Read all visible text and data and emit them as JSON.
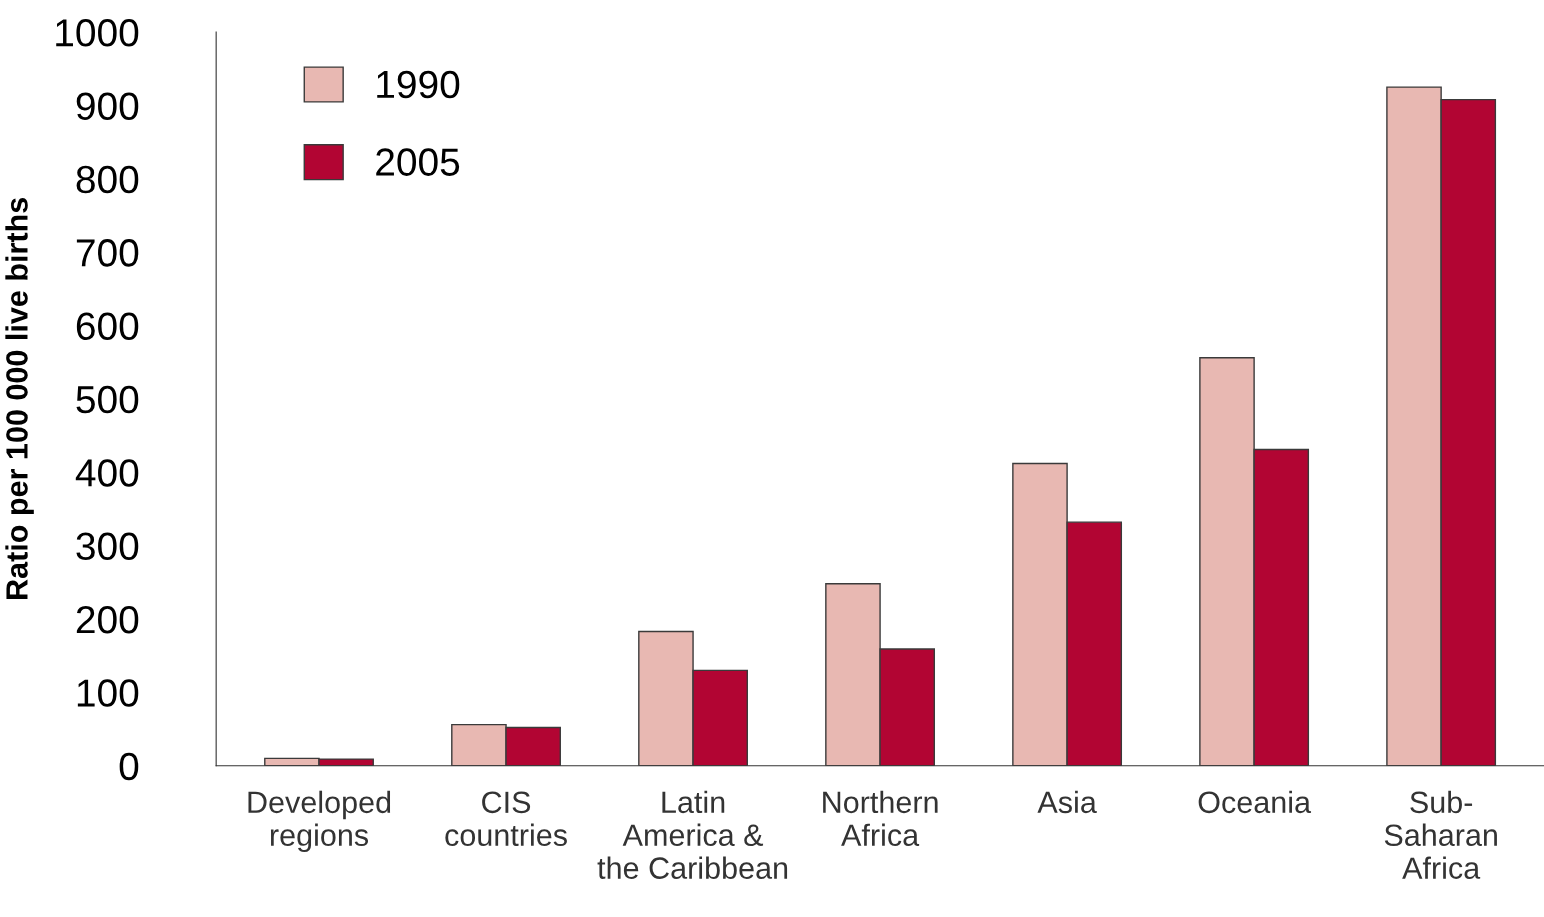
{
  "chart_data": {
    "type": "bar",
    "ylabel": "Ratio per 100 000 live births",
    "categories": [
      "Developed\nregions",
      "CIS\ncountries",
      "Latin\nAmerica &\nthe Caribbean",
      "Northern\nAfrica",
      "Asia",
      "Oceania",
      "Sub-\nSaharan\nAfrica"
    ],
    "series": [
      {
        "name": "1990",
        "color": "#e8b8b2",
        "values": [
          10,
          56,
          183,
          248,
          412,
          556,
          925
        ]
      },
      {
        "name": "2005",
        "color": "#b20533",
        "values": [
          9,
          52,
          130,
          159,
          332,
          431,
          908
        ]
      }
    ],
    "ylim": [
      0,
      1000
    ],
    "yticks": [
      0,
      100,
      200,
      300,
      400,
      500,
      600,
      700,
      800,
      900,
      1000
    ],
    "grid": false,
    "legend": "top left"
  }
}
